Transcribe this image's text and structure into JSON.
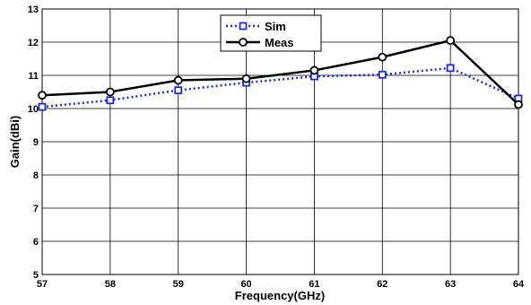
{
  "chart_data": {
    "type": "line",
    "xlabel": "Frequency(GHz)",
    "ylabel": "Gain(dBi)",
    "x": [
      57,
      58,
      59,
      60,
      61,
      62,
      63,
      64
    ],
    "xlim": [
      57,
      64
    ],
    "ylim": [
      5,
      13
    ],
    "x_ticks": [
      "57",
      "58",
      "59",
      "60",
      "61",
      "62",
      "63",
      "64"
    ],
    "y_ticks": [
      "5",
      "6",
      "7",
      "8",
      "9",
      "10",
      "11",
      "12",
      "13"
    ],
    "grid": true,
    "legend_position": "top-center",
    "series": [
      {
        "name": "Sim",
        "color": "#1f2cd6",
        "line_style": "dotted",
        "marker": "square",
        "values": [
          10.05,
          10.25,
          10.55,
          10.78,
          10.97,
          11.02,
          11.22,
          10.3
        ]
      },
      {
        "name": "Meas",
        "color": "#000000",
        "line_style": "solid",
        "marker": "circle",
        "values": [
          10.4,
          10.5,
          10.85,
          10.9,
          11.15,
          11.55,
          12.05,
          10.12
        ]
      }
    ]
  }
}
